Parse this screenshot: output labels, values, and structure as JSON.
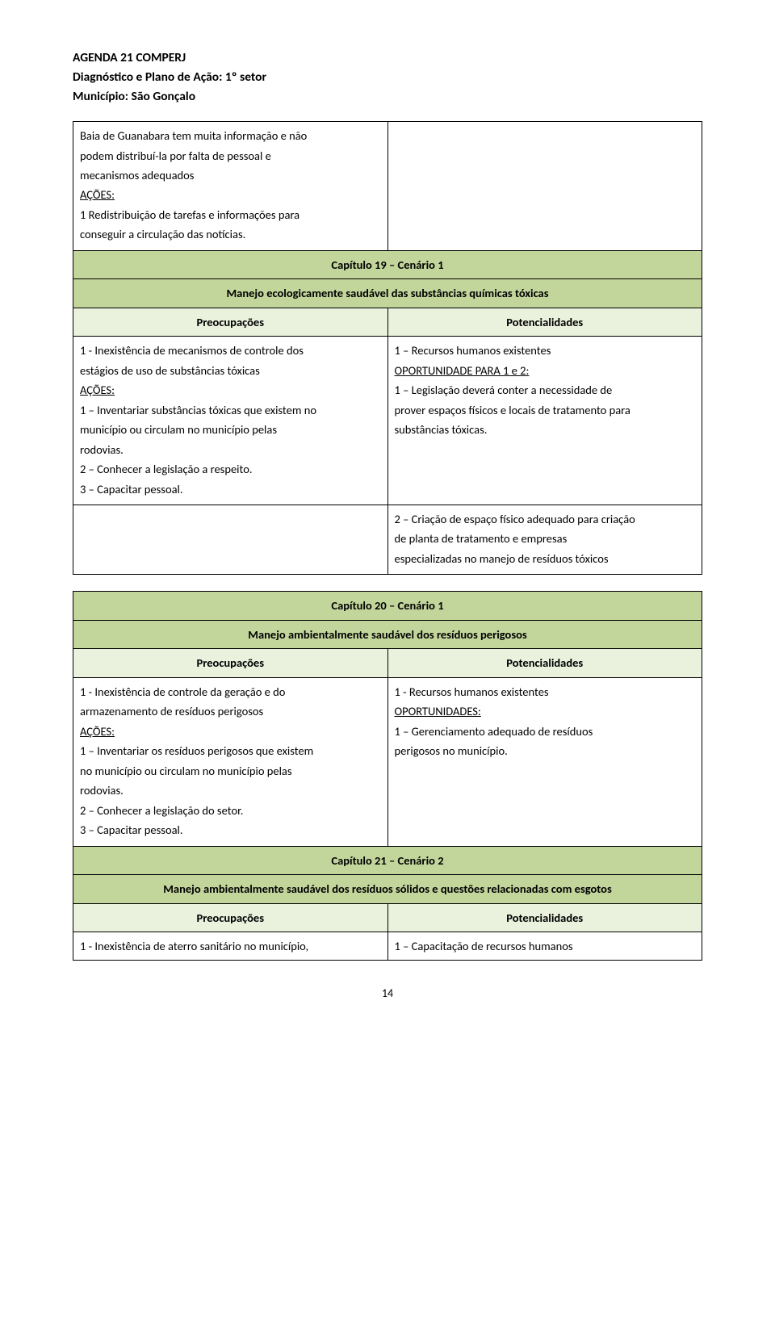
{
  "header": {
    "line1": "AGENDA 21 COMPERJ",
    "line2": "Diagnóstico e Plano de Ação: 1º setor",
    "line3": "Município: São Gonçalo"
  },
  "intro": {
    "p1": "Baia de Guanabara tem muita informação e não",
    "p2": "podem distribuí-la por falta de pessoal e",
    "p3": "mecanismos adequados",
    "acoes": "AÇÕES:",
    "p4": "1 Redistribuição de tarefas e informações para",
    "p5": "conseguir a circulação das notícias."
  },
  "t1": {
    "chapter": "Capítulo 19 – Cenário 1",
    "subtitle": "Manejo ecologicamente saudável das substâncias químicas tóxicas",
    "col1": "Preocupações",
    "col2": "Potencialidades",
    "left1": {
      "l1": "1 - Inexistência de mecanismos de controle dos",
      "l2": "estágios de uso de substâncias tóxicas",
      "acoes": "AÇÕES:",
      "l3": "1 – Inventariar substâncias tóxicas que existem no",
      "l4": "município ou circulam no município pelas",
      "l5": "rodovias.",
      "l6": "2 – Conhecer a legislação a respeito.",
      "l7": "3 – Capacitar pessoal."
    },
    "right1": {
      "r1": "1 – Recursos humanos existentes",
      "oport": "OPORTUNIDADE PARA 1 e 2:",
      "r2": "1 – Legislação deverá conter a necessidade de",
      "r3": "prover espaços físicos e locais de tratamento para",
      "r4": "substâncias tóxicas."
    },
    "right2": {
      "r1": "2 – Criação de espaço físico adequado para criação",
      "r2": "de planta de tratamento e empresas",
      "r3": "especializadas no manejo de resíduos tóxicos"
    }
  },
  "t2": {
    "chapter": "Capítulo 20 – Cenário 1",
    "subtitle": "Manejo ambientalmente saudável dos resíduos perigosos",
    "col1": "Preocupações",
    "col2": "Potencialidades",
    "left": {
      "l1": "1 - Inexistência de controle da geração e do",
      "l2": "armazenamento de resíduos perigosos",
      "acoes": "AÇÕES:",
      "l3": "1 – Inventariar os resíduos perigosos que existem",
      "l4": "no município ou circulam no município pelas",
      "l5": "rodovias.",
      "l6": "2 – Conhecer a legislação do setor.",
      "l7": "3 – Capacitar pessoal."
    },
    "right": {
      "r1": "1 - Recursos humanos existentes",
      "oport": "OPORTUNIDADES:",
      "r2": "1 – Gerenciamento adequado de  resíduos",
      "r3": "perigosos no município."
    },
    "chapter2": "Capítulo 21 – Cenário 2",
    "subtitle2": "Manejo ambientalmente saudável dos resíduos sólidos e questões relacionadas com esgotos",
    "col1b": "Preocupações",
    "col2b": "Potencialidades",
    "left2": "1 - Inexistência de aterro sanitário no município,",
    "right2": "1 – Capacitação de recursos humanos"
  },
  "pagenum": "14",
  "colors": {
    "header_green": "#c2d59b",
    "row_green": "#eaf1dd",
    "border": "#000000",
    "text": "#000000",
    "bg": "#ffffff"
  }
}
